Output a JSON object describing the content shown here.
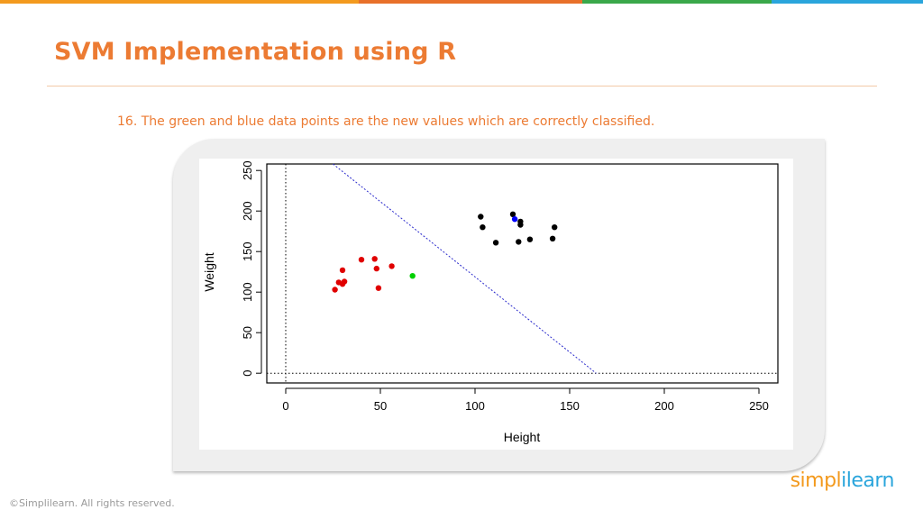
{
  "slide": {
    "title": "SVM Implementation using R",
    "caption": "16. The green and blue data points are the new values which are correctly classified.",
    "footer": "©Simplilearn. All rights reserved.",
    "logo_part1": "simpl",
    "logo_part2": "ilearn",
    "top_bar_colors": [
      "#f39a1e",
      "#e8702a",
      "#3aa84a",
      "#2aa5dc"
    ]
  },
  "chart_data": {
    "type": "scatter",
    "xlabel": "Height",
    "ylabel": "Weight",
    "xlim": [
      -10,
      260
    ],
    "ylim": [
      -12,
      258
    ],
    "x_ticks": [
      0,
      50,
      100,
      150,
      200,
      250
    ],
    "y_ticks": [
      0,
      50,
      100,
      150,
      200,
      250
    ],
    "grid": false,
    "reference_lines": {
      "x": 0,
      "y": 0,
      "style": "dotted"
    },
    "decision_boundary": {
      "from": [
        25,
        258
      ],
      "to": [
        164,
        0
      ],
      "color": "#2b2bcc",
      "style": "dotted"
    },
    "series": [
      {
        "color": "#e00000",
        "points": [
          [
            26,
            103
          ],
          [
            28,
            112
          ],
          [
            30,
            110
          ],
          [
            30,
            127
          ],
          [
            31,
            113
          ],
          [
            40,
            140
          ],
          [
            47,
            141
          ],
          [
            48,
            129
          ],
          [
            49,
            105
          ],
          [
            56,
            132
          ]
        ]
      },
      {
        "color": "#000000",
        "points": [
          [
            103,
            193
          ],
          [
            104,
            180
          ],
          [
            111,
            161
          ],
          [
            120,
            196
          ],
          [
            123,
            162
          ],
          [
            124,
            183
          ],
          [
            124,
            187
          ],
          [
            129,
            165
          ],
          [
            141,
            166
          ],
          [
            142,
            180
          ]
        ]
      },
      {
        "color": "#00d000",
        "points": [
          [
            67,
            120
          ]
        ]
      },
      {
        "color": "#0000ff",
        "points": [
          [
            121,
            190
          ]
        ]
      }
    ]
  }
}
